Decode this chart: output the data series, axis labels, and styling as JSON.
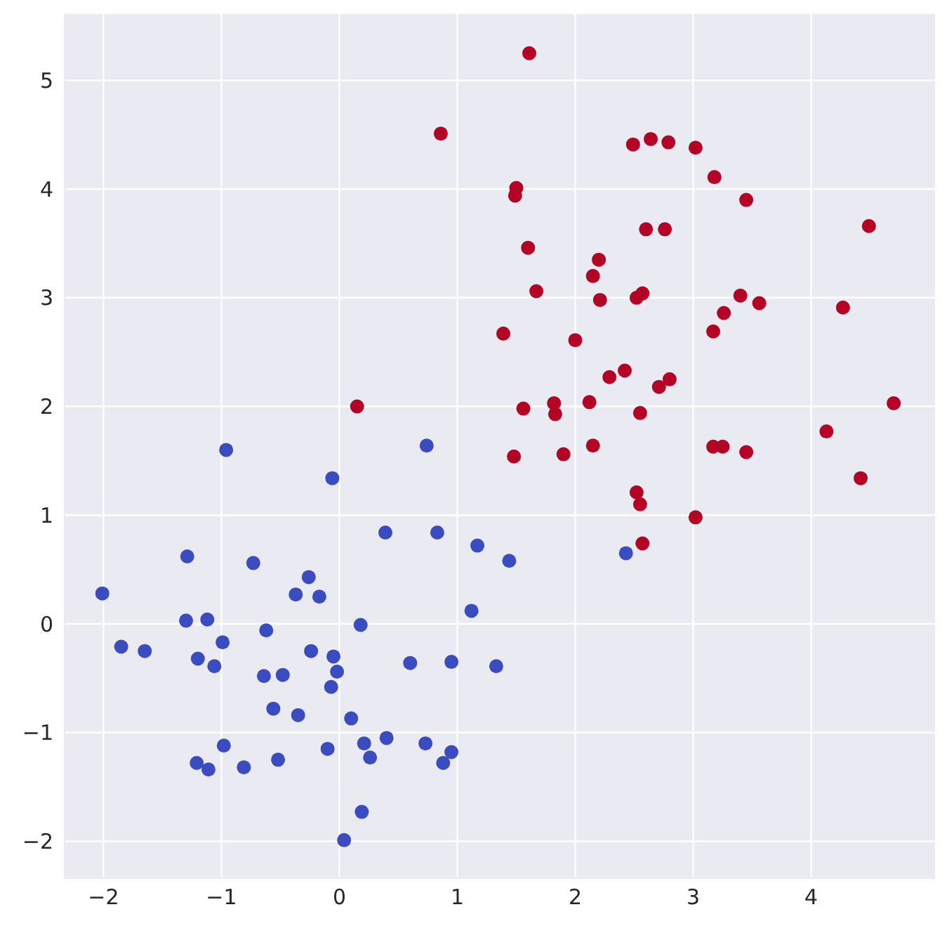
{
  "chart_data": {
    "type": "scatter",
    "marker": "circle",
    "grid": true,
    "xlim": [
      -2.33,
      5.05
    ],
    "xticks": [
      -2,
      -1,
      0,
      1,
      2,
      3,
      4
    ],
    "ylim": [
      -2.34,
      5.61
    ],
    "yticks": [
      -2,
      -1,
      0,
      1,
      2,
      3,
      4,
      5
    ],
    "series": [
      {
        "color": "#b40426",
        "x": [
          1.61,
          0.86,
          2.49,
          2.64,
          2.79,
          3.02,
          3.18,
          1.49,
          1.5,
          3.45,
          4.49,
          2.6,
          2.76,
          1.6,
          2.2,
          2.15,
          1.67,
          2.57,
          2.52,
          2.21,
          3.4,
          3.56,
          3.26,
          4.27,
          1.39,
          3.17,
          2.0,
          2.42,
          2.29,
          2.71,
          2.8,
          0.15,
          1.82,
          2.12,
          1.56,
          1.83,
          2.55,
          4.7,
          4.13,
          3.17,
          3.25,
          3.45,
          2.15,
          1.9,
          1.48,
          4.42,
          2.52,
          2.55,
          3.02,
          2.57
        ],
        "values": [
          5.25,
          4.51,
          4.41,
          4.46,
          4.43,
          4.38,
          4.11,
          3.94,
          4.01,
          3.9,
          3.66,
          3.63,
          3.63,
          3.46,
          3.35,
          3.2,
          3.06,
          3.04,
          3.0,
          2.98,
          3.02,
          2.95,
          2.86,
          2.91,
          2.67,
          2.69,
          2.61,
          2.33,
          2.27,
          2.18,
          2.25,
          2.0,
          2.03,
          2.04,
          1.98,
          1.93,
          1.94,
          2.03,
          1.77,
          1.63,
          1.63,
          1.58,
          1.64,
          1.56,
          1.54,
          1.34,
          1.21,
          1.1,
          0.98,
          0.74
        ]
      },
      {
        "color": "#3b4cc0",
        "x": [
          -0.96,
          0.74,
          -0.06,
          0.39,
          0.83,
          1.17,
          1.44,
          2.43,
          -1.29,
          -0.73,
          -0.26,
          -2.01,
          -0.37,
          -0.17,
          1.12,
          -1.3,
          -1.12,
          0.18,
          -0.99,
          -0.62,
          -1.85,
          -1.65,
          -1.2,
          -1.06,
          -0.24,
          -0.05,
          0.6,
          0.95,
          1.33,
          -0.64,
          -0.48,
          -0.02,
          -0.07,
          -0.56,
          -0.35,
          0.1,
          0.4,
          0.21,
          0.73,
          -0.98,
          -0.1,
          0.95,
          0.26,
          -1.21,
          -0.52,
          0.88,
          -1.11,
          -0.81,
          0.19,
          0.04
        ],
        "values": [
          1.6,
          1.64,
          1.34,
          0.84,
          0.84,
          0.72,
          0.58,
          0.65,
          0.62,
          0.56,
          0.43,
          0.28,
          0.27,
          0.25,
          0.12,
          0.03,
          0.04,
          -0.01,
          -0.17,
          -0.06,
          -0.21,
          -0.25,
          -0.32,
          -0.39,
          -0.25,
          -0.3,
          -0.36,
          -0.35,
          -0.39,
          -0.48,
          -0.47,
          -0.44,
          -0.58,
          -0.78,
          -0.84,
          -0.87,
          -1.05,
          -1.1,
          -1.1,
          -1.12,
          -1.15,
          -1.18,
          -1.23,
          -1.28,
          -1.25,
          -1.28,
          -1.34,
          -1.32,
          -1.73,
          -1.99
        ]
      }
    ]
  }
}
